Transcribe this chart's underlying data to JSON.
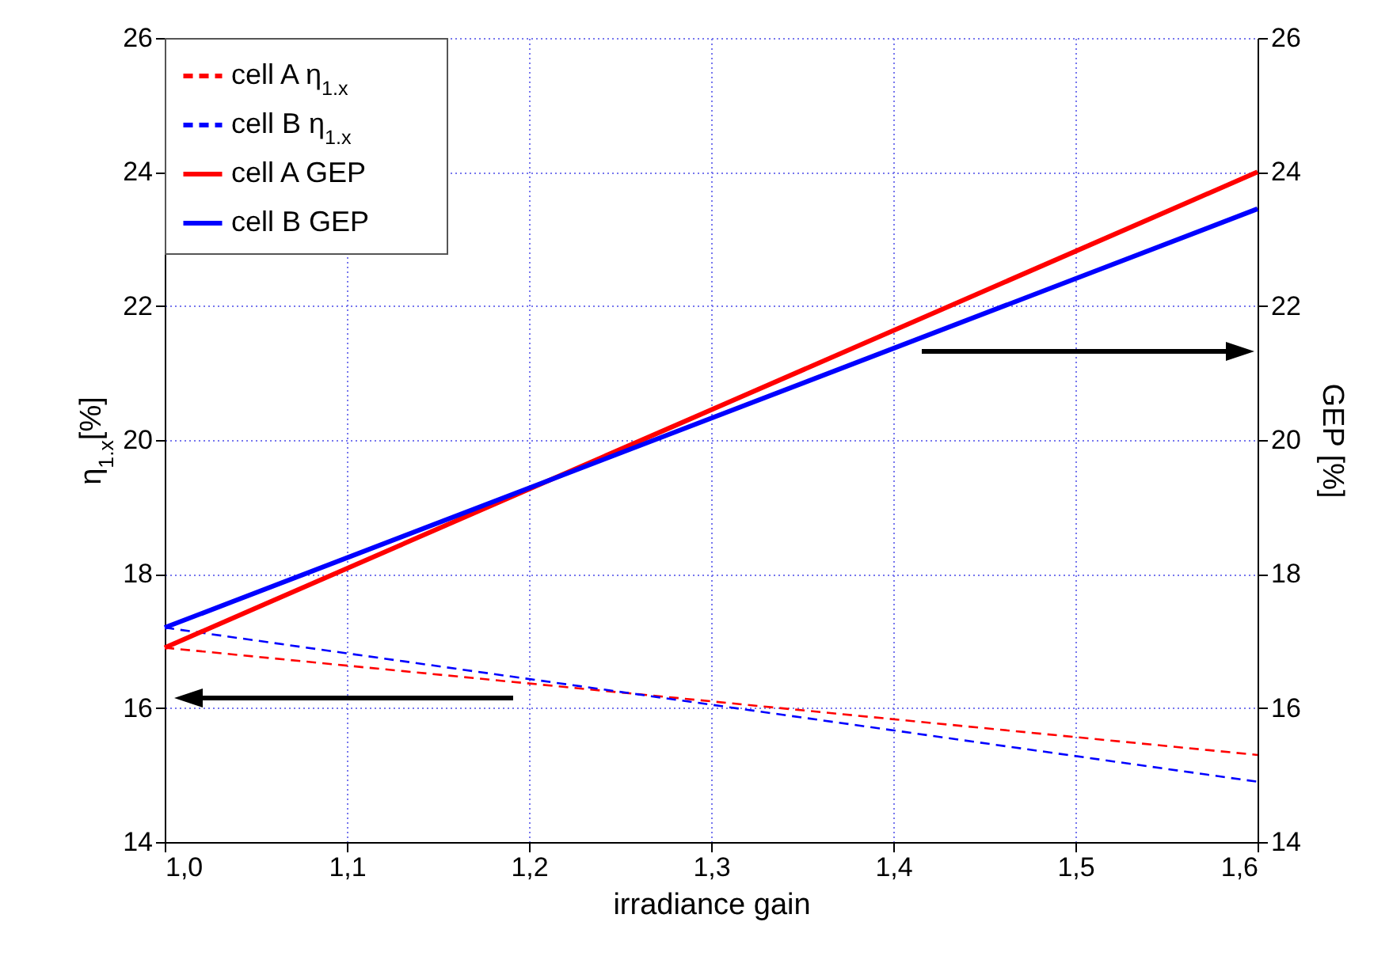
{
  "chart_data": {
    "type": "line",
    "xlabel": "irradiance gain",
    "ylabel": "η$_{1.x}$[%]",
    "y2label": "GEP [%]",
    "x": [
      1.0,
      1.6
    ],
    "series": [
      {
        "name": "cell A η$_{1.x}$",
        "color": "#ff0000",
        "line_style": "dashed",
        "values": [
          16.9,
          15.3
        ]
      },
      {
        "name": "cell B η$_{1.x}$",
        "color": "#0000ff",
        "line_style": "dashed",
        "values": [
          17.2,
          14.9
        ]
      },
      {
        "name": "cell A GEP",
        "color": "#ff0000",
        "line_style": "solid",
        "axis": "y2",
        "values": [
          16.9,
          24.0
        ]
      },
      {
        "name": "cell B GEP",
        "color": "#0000ff",
        "line_style": "solid",
        "axis": "y2",
        "values": [
          17.2,
          23.45
        ]
      }
    ],
    "xlim": [
      1.0,
      1.6
    ],
    "xticks": [
      {
        "value": 1.0,
        "label": "1,0"
      },
      {
        "value": 1.1,
        "label": "1,1"
      },
      {
        "value": 1.2,
        "label": "1,2"
      },
      {
        "value": 1.3,
        "label": "1,3"
      },
      {
        "value": 1.4,
        "label": "1,4"
      },
      {
        "value": 1.5,
        "label": "1,5"
      },
      {
        "value": 1.6,
        "label": "1,6"
      }
    ],
    "ylim": [
      14,
      26
    ],
    "yticks": [
      14,
      16,
      18,
      20,
      22,
      24,
      26
    ],
    "y2lim": [
      14,
      26
    ],
    "y2ticks": [
      14,
      16,
      18,
      20,
      22,
      24,
      26
    ],
    "grid": true,
    "legend": "top left",
    "marker": "none"
  }
}
